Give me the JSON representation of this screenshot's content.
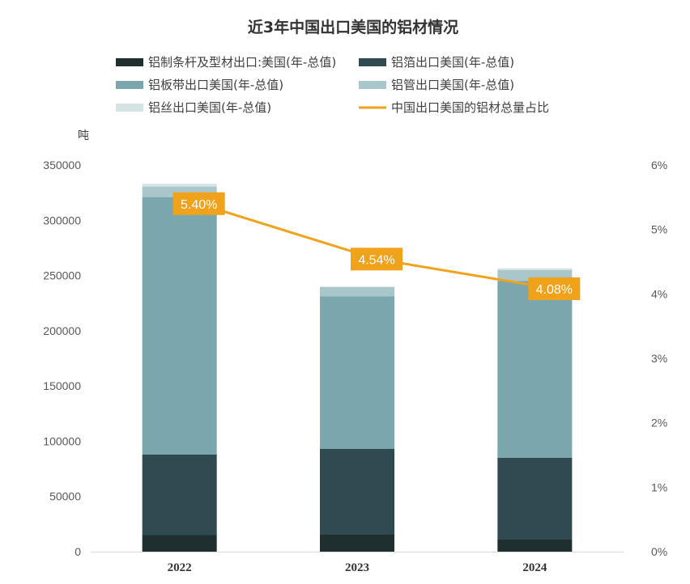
{
  "chart_data": {
    "type": "bar",
    "stacked": true,
    "title": "近3年中国出口美国的铝材情况",
    "y_unit": "吨",
    "categories": [
      "2022",
      "2023",
      "2024"
    ],
    "ylim": [
      0,
      350000
    ],
    "y_ticks": [
      "0",
      "50000",
      "100000",
      "150000",
      "200000",
      "250000",
      "300000",
      "350000"
    ],
    "y2lim": [
      0,
      6
    ],
    "y2_ticks": [
      "0%",
      "1%",
      "2%",
      "3%",
      "4%",
      "5%",
      "6%"
    ],
    "legend_position": "top",
    "series": [
      {
        "name": "铝制条杆及型材出口:美国(年-总值)",
        "color": "#1f2e2e",
        "values": [
          15000,
          16000,
          11000
        ]
      },
      {
        "name": "铝箔出口美国(年-总值)",
        "color": "#2f4a50",
        "values": [
          73000,
          77000,
          74000
        ]
      },
      {
        "name": "铝板带出口美国(年-总值)",
        "color": "#7aa6ae",
        "values": [
          233000,
          138000,
          160000
        ]
      },
      {
        "name": "铝管出口美国(年-总值)",
        "color": "#a9c6cb",
        "values": [
          9500,
          8500,
          10000
        ]
      },
      {
        "name": "铝丝出口美国(年-总值)",
        "color": "#d6e3e5",
        "values": [
          2500,
          500,
          1500
        ]
      }
    ],
    "line_series": {
      "name": "中国出口美国的铝材总量占比",
      "color": "#f0a21a",
      "axis": "right",
      "values": [
        5.4,
        4.54,
        4.08
      ],
      "labels": [
        "5.40%",
        "4.54%",
        "4.08%"
      ]
    },
    "grid": false
  }
}
